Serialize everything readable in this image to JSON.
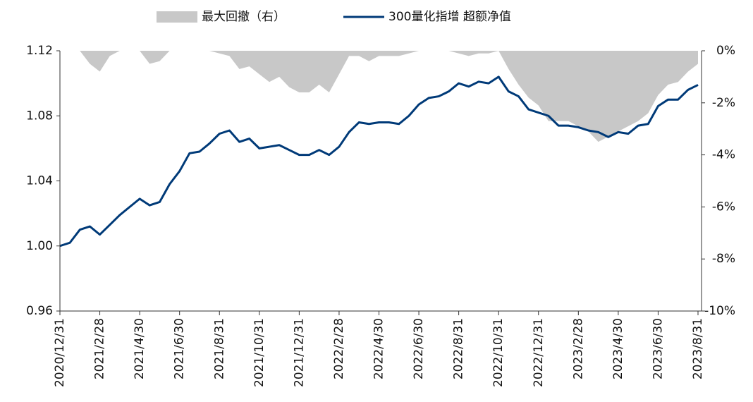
{
  "chart_data": {
    "type": "line",
    "categories": [
      "2020/12/31",
      null,
      null,
      null,
      "2021/2/28",
      null,
      null,
      null,
      "2021/4/30",
      null,
      null,
      null,
      "2021/6/30",
      null,
      null,
      null,
      "2021/8/31",
      null,
      null,
      null,
      "2021/10/31",
      null,
      null,
      null,
      "2021/12/31",
      null,
      null,
      null,
      "2022/2/28",
      null,
      null,
      null,
      "2022/4/30",
      null,
      null,
      null,
      "2022/6/30",
      null,
      null,
      null,
      "2022/8/31",
      null,
      null,
      null,
      "2022/10/31",
      null,
      null,
      null,
      "2022/12/31",
      null,
      null,
      null,
      "2023/2/28",
      null,
      null,
      null,
      "2023/4/30",
      null,
      null,
      null,
      "2023/6/30",
      null,
      null,
      null,
      "2023/8/31"
    ],
    "series": [
      {
        "name": "最大回撤（右）",
        "color": "#c8c8c8",
        "axis": "y2",
        "kind": "area",
        "values": [
          0,
          0,
          0,
          -0.5,
          -0.8,
          -0.2,
          0,
          0,
          0,
          -0.5,
          -0.4,
          0,
          0,
          0,
          0,
          0,
          -0.1,
          -0.2,
          -0.7,
          -0.6,
          -0.9,
          -1.2,
          -1.0,
          -1.4,
          -1.6,
          -1.6,
          -1.3,
          -1.6,
          -0.9,
          -0.2,
          -0.2,
          -0.4,
          -0.2,
          -0.2,
          -0.2,
          -0.1,
          0,
          0,
          0,
          0,
          -0.1,
          -0.2,
          -0.1,
          -0.1,
          0,
          -0.7,
          -1.3,
          -1.8,
          -2.1,
          -2.7,
          -2.7,
          -2.7,
          -2.9,
          -3.1,
          -3.5,
          -3.3,
          -3.1,
          -2.9,
          -2.7,
          -2.4,
          -1.7,
          -1.3,
          -1.2,
          -0.8,
          -0.5
        ]
      },
      {
        "name": "300量化指增 超额净值",
        "color": "#003a78",
        "kind": "line",
        "values": [
          1.0,
          1.002,
          1.01,
          1.012,
          1.007,
          1.013,
          1.019,
          1.024,
          1.029,
          1.025,
          1.027,
          1.038,
          1.046,
          1.057,
          1.058,
          1.063,
          1.069,
          1.071,
          1.064,
          1.066,
          1.06,
          1.061,
          1.062,
          1.059,
          1.056,
          1.056,
          1.059,
          1.056,
          1.061,
          1.07,
          1.076,
          1.075,
          1.076,
          1.076,
          1.075,
          1.08,
          1.087,
          1.091,
          1.092,
          1.095,
          1.1,
          1.098,
          1.101,
          1.1,
          1.104,
          1.095,
          1.092,
          1.084,
          1.082,
          1.08,
          1.074,
          1.074,
          1.073,
          1.071,
          1.07,
          1.067,
          1.07,
          1.069,
          1.074,
          1.075,
          1.086,
          1.09,
          1.09,
          1.096,
          1.099
        ]
      }
    ],
    "ylim": [
      0.96,
      1.12
    ],
    "yticks": [
      1.12,
      1.08,
      1.04,
      {
        "value": 1.0,
        "label": "1.00"
      },
      0.96
    ],
    "y2lim": [
      -10,
      0
    ],
    "y2ticks": [
      {
        "value": 0,
        "label": "0%"
      },
      {
        "value": -2,
        "label": "-2%"
      },
      {
        "value": -4,
        "label": "-4%"
      },
      {
        "value": -6,
        "label": "-6%"
      },
      {
        "value": -8,
        "label": "-8%"
      },
      {
        "value": -10,
        "label": "-10%"
      }
    ],
    "legend": "top"
  }
}
